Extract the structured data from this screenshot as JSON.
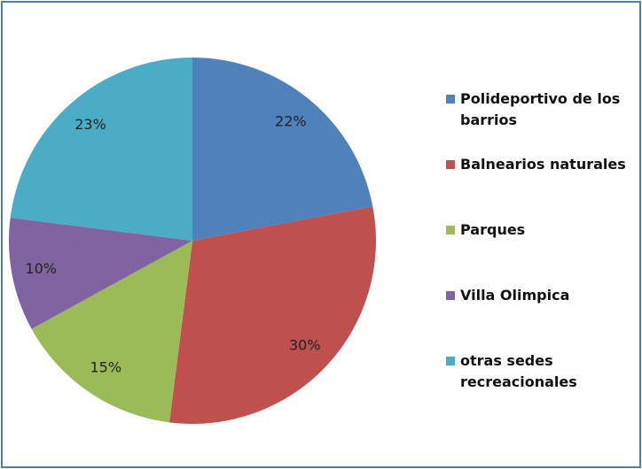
{
  "chart_data": {
    "type": "pie",
    "categories": [
      "Polideportivo de los barrios",
      "Balnearios naturales",
      "Parques",
      "Villa Olimpica",
      "otras sedes recreacionales"
    ],
    "values": [
      22,
      30,
      15,
      10,
      23
    ],
    "value_labels": [
      "22%",
      "30%",
      "15%",
      "10%",
      "23%"
    ],
    "colors": [
      "#4f81bd",
      "#c0504d",
      "#9bbb59",
      "#8064a2",
      "#4bacc6"
    ],
    "legend": "right"
  }
}
